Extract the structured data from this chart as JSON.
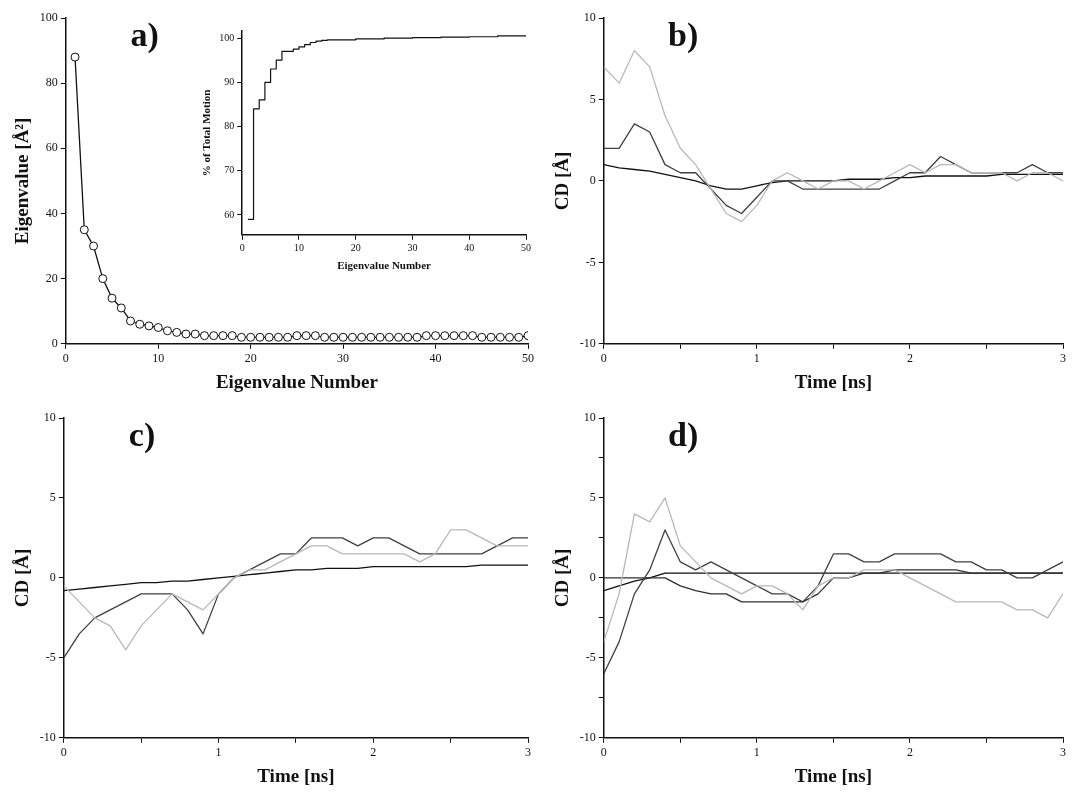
{
  "chart_data": [
    {
      "type": "line",
      "xlabel": "Eigenvalue Number",
      "ylabel": "Eigenvalue [Å²]",
      "annotations": [
        "a)"
      ],
      "marker": "circle",
      "xlim": [
        0,
        50
      ],
      "xticks": [
        0,
        10,
        20,
        30,
        40,
        50
      ],
      "ylim": [
        0,
        100
      ],
      "yticks": [
        0,
        20,
        40,
        60,
        80,
        100
      ],
      "x": [
        1,
        2,
        3,
        4,
        5,
        6,
        7,
        8,
        9,
        10,
        11,
        12,
        13,
        14,
        15,
        16,
        17,
        18,
        19,
        20,
        21,
        22,
        23,
        24,
        25,
        26,
        27,
        28,
        29,
        30,
        31,
        32,
        33,
        34,
        35,
        36,
        37,
        38,
        39,
        40,
        41,
        42,
        43,
        44,
        45,
        46,
        47,
        48,
        49,
        50
      ],
      "series": [
        {
          "color": "#111111",
          "values": [
            88,
            35,
            30,
            20,
            14,
            11,
            7,
            6,
            5.5,
            5,
            4,
            3.5,
            3,
            3,
            2.5,
            2.5,
            2.5,
            2.5,
            2,
            2,
            2,
            2,
            2,
            2,
            2.5,
            2.5,
            2.5,
            2,
            2,
            2,
            2,
            2,
            2,
            2,
            2,
            2,
            2,
            2,
            2.5,
            2.5,
            2.5,
            2.5,
            2.5,
            2.5,
            2,
            2,
            2,
            2,
            2,
            2.5
          ]
        }
      ]
    },
    {
      "type": "step",
      "xlabel": "Eigenvalue Number",
      "ylabel": "% of Total Motion",
      "xlim": [
        0,
        50
      ],
      "xticks": [
        0,
        10,
        20,
        30,
        40,
        50
      ],
      "ylim": [
        55.5,
        101.6
      ],
      "yticks": [
        60,
        70,
        80,
        90,
        100
      ],
      "x": [
        1,
        2,
        3,
        4,
        5,
        6,
        7,
        8,
        9,
        10,
        11,
        12,
        13,
        14,
        15,
        20,
        25,
        30,
        35,
        40,
        45,
        50
      ],
      "series": [
        {
          "color": "#111111",
          "values": [
            59,
            84,
            86,
            90,
            93,
            95,
            97,
            97,
            97.5,
            98,
            98.5,
            99,
            99.3,
            99.5,
            99.6,
            99.8,
            100,
            100.1,
            100.2,
            100.3,
            100.5,
            100.5
          ]
        }
      ]
    },
    {
      "type": "line",
      "xlabel": "Time [ns]",
      "ylabel": "CD [Å]",
      "annotations": [
        "b)"
      ],
      "xlim": [
        0,
        3
      ],
      "xticks": [
        0,
        {
          "value": 0.5,
          "label": null
        },
        1,
        {
          "value": 1.5,
          "label": null
        },
        2,
        {
          "value": 2.5,
          "label": null
        },
        3
      ],
      "ylim": [
        -10,
        10
      ],
      "yticks": [
        -10,
        -5,
        0,
        5,
        10
      ],
      "x": [
        0,
        0.1,
        0.2,
        0.3,
        0.4,
        0.5,
        0.6,
        0.7,
        0.8,
        0.9,
        1,
        1.1,
        1.2,
        1.3,
        1.4,
        1.5,
        1.6,
        1.7,
        1.8,
        1.9,
        2,
        2.1,
        2.2,
        2.3,
        2.4,
        2.5,
        2.6,
        2.7,
        2.8,
        2.9,
        3
      ],
      "series": [
        {
          "color": "#b8b8b8",
          "values": [
            7,
            6,
            8,
            7,
            4,
            2,
            1,
            -0.5,
            -2,
            -2.5,
            -1.5,
            0,
            0.5,
            0,
            -0.5,
            0,
            0,
            -0.5,
            0,
            0.5,
            1,
            0.5,
            1,
            1,
            0.5,
            0.5,
            0.5,
            0,
            0.5,
            0.5,
            0
          ]
        },
        {
          "color": "#404040",
          "values": [
            2,
            2,
            3.5,
            3,
            1,
            0.5,
            0.5,
            -0.5,
            -1.5,
            -2,
            -1,
            0,
            0,
            -0.5,
            -0.5,
            -0.5,
            -0.5,
            -0.5,
            -0.5,
            0,
            0.5,
            0.5,
            1.5,
            1,
            0.5,
            0.5,
            0.5,
            0.5,
            1,
            0.5,
            0.5
          ]
        },
        {
          "color": "#111111",
          "values": [
            1,
            0.8,
            0.7,
            0.6,
            0.4,
            0.2,
            0,
            -0.3,
            -0.5,
            -0.5,
            -0.3,
            -0.1,
            0,
            0,
            0,
            0,
            0.1,
            0.1,
            0.1,
            0.2,
            0.2,
            0.3,
            0.3,
            0.3,
            0.3,
            0.3,
            0.4,
            0.4,
            0.4,
            0.4,
            0.4
          ]
        }
      ]
    },
    {
      "type": "line",
      "xlabel": "Time [ns]",
      "ylabel": "CD [Å]",
      "annotations": [
        "c)"
      ],
      "xlim": [
        0,
        3
      ],
      "xticks": [
        0,
        {
          "value": 0.5,
          "label": null
        },
        1,
        {
          "value": 1.5,
          "label": null
        },
        2,
        {
          "value": 2.5,
          "label": null
        },
        3
      ],
      "ylim": [
        -10,
        10
      ],
      "yticks": [
        -10,
        -5,
        0,
        5,
        10
      ],
      "x": [
        0,
        0.1,
        0.2,
        0.3,
        0.4,
        0.5,
        0.6,
        0.7,
        0.8,
        0.9,
        1,
        1.1,
        1.2,
        1.3,
        1.4,
        1.5,
        1.6,
        1.7,
        1.8,
        1.9,
        2,
        2.1,
        2.2,
        2.3,
        2.4,
        2.5,
        2.6,
        2.7,
        2.8,
        2.9,
        3
      ],
      "series": [
        {
          "color": "#b8b8b8",
          "values": [
            -0.5,
            -1.5,
            -2.5,
            -3,
            -4.5,
            -3,
            -2,
            -1,
            -1.5,
            -2,
            -1,
            0,
            0.5,
            0.5,
            1,
            1.5,
            2,
            2,
            1.5,
            1.5,
            1.5,
            1.5,
            1.5,
            1,
            1.5,
            3,
            3,
            2.5,
            2,
            2,
            2
          ]
        },
        {
          "color": "#404040",
          "values": [
            -5,
            -3.5,
            -2.5,
            -2,
            -1.5,
            -1,
            -1,
            -1,
            -2,
            -3.5,
            -1,
            0,
            0.5,
            1,
            1.5,
            1.5,
            2.5,
            2.5,
            2.5,
            2,
            2.5,
            2.5,
            2,
            1.5,
            1.5,
            1.5,
            1.5,
            1.5,
            2,
            2.5,
            2.5
          ]
        },
        {
          "color": "#111111",
          "values": [
            -0.8,
            -0.7,
            -0.6,
            -0.5,
            -0.4,
            -0.3,
            -0.3,
            -0.2,
            -0.2,
            -0.1,
            0,
            0.1,
            0.2,
            0.3,
            0.4,
            0.5,
            0.5,
            0.6,
            0.6,
            0.6,
            0.7,
            0.7,
            0.7,
            0.7,
            0.7,
            0.7,
            0.7,
            0.8,
            0.8,
            0.8,
            0.8
          ]
        }
      ]
    },
    {
      "type": "line",
      "xlabel": "Time [ns]",
      "ylabel": "CD [Å]",
      "annotations": [
        "d)"
      ],
      "xlim": [
        0,
        3
      ],
      "xticks": [
        0,
        {
          "value": 0.5,
          "label": null
        },
        1,
        {
          "value": 1.5,
          "label": null
        },
        2,
        {
          "value": 2.5,
          "label": null
        },
        3
      ],
      "ylim": [
        -10,
        10
      ],
      "yticks": [
        -10,
        {
          "value": -7.5,
          "label": null
        },
        -5,
        {
          "value": -2.5,
          "label": null
        },
        0,
        {
          "value": 2.5,
          "label": null
        },
        5,
        {
          "value": 7.5,
          "label": null
        },
        10
      ],
      "x": [
        0,
        0.1,
        0.2,
        0.3,
        0.4,
        0.5,
        0.6,
        0.7,
        0.8,
        0.9,
        1,
        1.1,
        1.2,
        1.3,
        1.4,
        1.5,
        1.6,
        1.7,
        1.8,
        1.9,
        2,
        2.1,
        2.2,
        2.3,
        2.4,
        2.5,
        2.6,
        2.7,
        2.8,
        2.9,
        3
      ],
      "series": [
        {
          "color": "#b8b8b8",
          "values": [
            -4,
            -1,
            4,
            3.5,
            5,
            2,
            1,
            0,
            -0.5,
            -1,
            -0.5,
            -0.5,
            -1,
            -2,
            -0.5,
            0,
            0,
            0.5,
            0.5,
            0.5,
            0,
            -0.5,
            -1,
            -1.5,
            -1.5,
            -1.5,
            -1.5,
            -2,
            -2,
            -2.5,
            -1
          ]
        },
        {
          "color": "#404040",
          "values": [
            -6,
            -4,
            -1,
            0.5,
            3,
            1,
            0.5,
            1,
            0.5,
            0,
            -0.5,
            -1,
            -1,
            -1.5,
            -0.5,
            1.5,
            1.5,
            1,
            1,
            1.5,
            1.5,
            1.5,
            1.5,
            1,
            1,
            0.5,
            0.5,
            0,
            0,
            0.5,
            1
          ]
        },
        {
          "color": "#303030",
          "values": [
            0,
            0,
            0,
            0,
            0,
            -0.5,
            -0.8,
            -1,
            -1,
            -1.5,
            -1.5,
            -1.5,
            -1.5,
            -1.5,
            -1,
            0,
            0,
            0.3,
            0.3,
            0.5,
            0.5,
            0.5,
            0.5,
            0.5,
            0.3,
            0.3,
            0.3,
            0.3,
            0.3,
            0.3,
            0.3
          ]
        },
        {
          "color": "#111111",
          "values": [
            -0.8,
            -0.5,
            -0.2,
            0,
            0.3,
            0.3,
            0.3,
            0.3,
            0.3,
            0.3,
            0.3,
            0.3,
            0.3,
            0.3,
            0.3,
            0.3,
            0.3,
            0.3,
            0.3,
            0.3,
            0.3,
            0.3,
            0.3,
            0.3,
            0.3,
            0.3,
            0.3,
            0.3,
            0.3,
            0.3,
            0.3
          ]
        }
      ]
    }
  ]
}
